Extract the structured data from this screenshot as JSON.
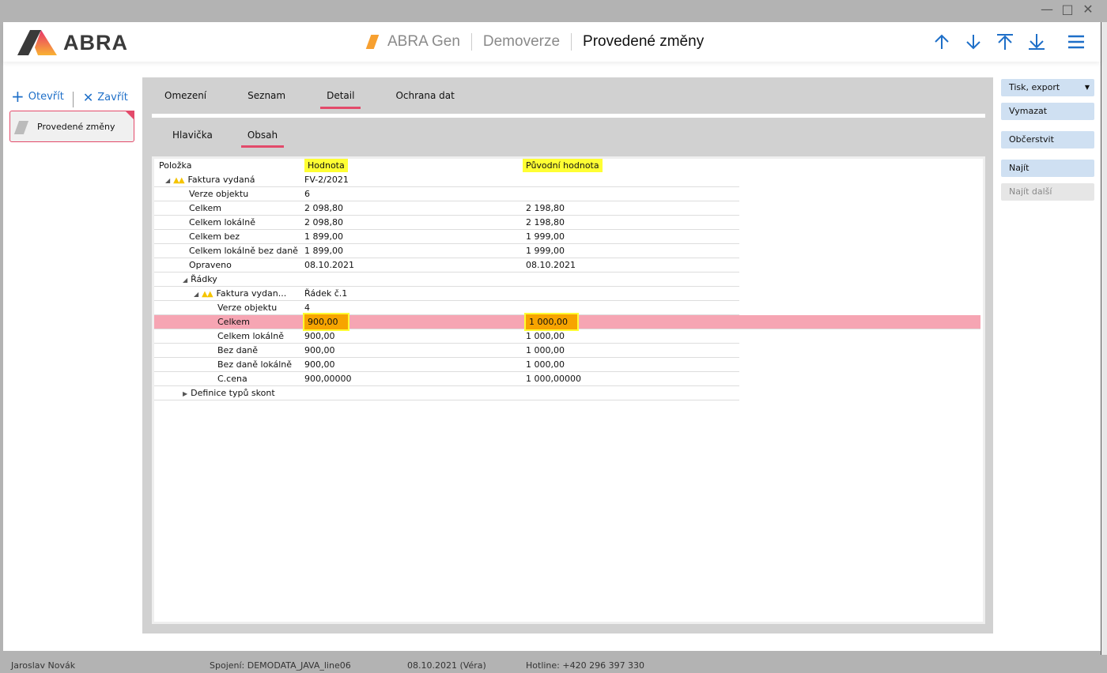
{
  "window": {
    "controls": [
      "minimize",
      "maximize",
      "close"
    ]
  },
  "header": {
    "logo": "ABRA",
    "breadcrumbs": [
      "ABRA Gen",
      "Demoverze",
      "Provedené změny"
    ],
    "nav_icons": [
      "arrow-up-icon",
      "arrow-down-icon",
      "arrow-top-icon",
      "arrow-bottom-icon",
      "menu-icon"
    ]
  },
  "leftbar": {
    "open_label": "Otevřít",
    "close_label": "Zavřít",
    "open_items": [
      "Provedené změny"
    ]
  },
  "tabs": [
    {
      "label": "Omezení"
    },
    {
      "label": "Seznam"
    },
    {
      "label": "Detail",
      "active": true
    },
    {
      "label": "Ochrana dat"
    }
  ],
  "subtabs": [
    {
      "label": "Hlavička"
    },
    {
      "label": "Obsah",
      "active": true
    }
  ],
  "grid": {
    "columns": [
      "Položka",
      "Hodnota",
      "Původní hodnota"
    ],
    "rows": [
      {
        "level": 0,
        "expand": "open",
        "warn": true,
        "name": "Faktura vydaná",
        "value": "FV-2/2021",
        "original": ""
      },
      {
        "level": 1,
        "name": "Verze objektu",
        "value": "6",
        "original": ""
      },
      {
        "level": 1,
        "name": "Celkem",
        "value": "2 098,80",
        "original": "2 198,80"
      },
      {
        "level": 1,
        "name": "Celkem lokálně",
        "value": "2 098,80",
        "original": "2 198,80"
      },
      {
        "level": 1,
        "name": "Celkem bez",
        "value": "1 899,00",
        "original": "1 999,00"
      },
      {
        "level": 1,
        "name": "Celkem lokálně bez daně",
        "value": "1 899,00",
        "original": "1 999,00"
      },
      {
        "level": 1,
        "name": "Opraveno",
        "value": "08.10.2021",
        "original": "08.10.2021"
      },
      {
        "level": 1,
        "expand": "open",
        "name": "Řádky",
        "value": "",
        "original": ""
      },
      {
        "level": 2,
        "expand": "open",
        "warn": true,
        "name": "Faktura vydan...",
        "value": "Řádek č.1",
        "original": ""
      },
      {
        "level": 3,
        "name": "Verze objektu",
        "value": "4",
        "original": ""
      },
      {
        "level": 3,
        "name": "Celkem",
        "value": "900,00",
        "original": "1 000,00",
        "selected": true,
        "highlight": true
      },
      {
        "level": 3,
        "name": "Celkem lokálně",
        "value": "900,00",
        "original": "1 000,00"
      },
      {
        "level": 3,
        "name": "Bez daně",
        "value": "900,00",
        "original": "1 000,00"
      },
      {
        "level": 3,
        "name": "Bez daně lokálně",
        "value": "900,00",
        "original": "1 000,00"
      },
      {
        "level": 3,
        "name": "C.cena",
        "value": "900,00000",
        "original": "1 000,00000"
      },
      {
        "level": 1,
        "expand": "closed",
        "name": "Definice typů skont",
        "value": "",
        "original": ""
      }
    ]
  },
  "actions": [
    {
      "label": "Tisk, export",
      "dropdown": true
    },
    {
      "label": "Vymazat"
    },
    {
      "label": "Občerstvit"
    },
    {
      "label": "Najít"
    },
    {
      "label": "Najít další",
      "disabled": true
    }
  ],
  "status": {
    "user": "Jaroslav Novák",
    "connection": "Spojení: DEMODATA_JAVA_line06",
    "date": "08.10.2021 (Véra)",
    "hotline": "Hotline: +420 296 397 330"
  },
  "colors": {
    "accent": "#e34a6a",
    "link": "#1e6fc8",
    "selected_row": "#f6a5b3",
    "marker_yellow": "#ffff33",
    "marker_orange": "#f7a400"
  }
}
